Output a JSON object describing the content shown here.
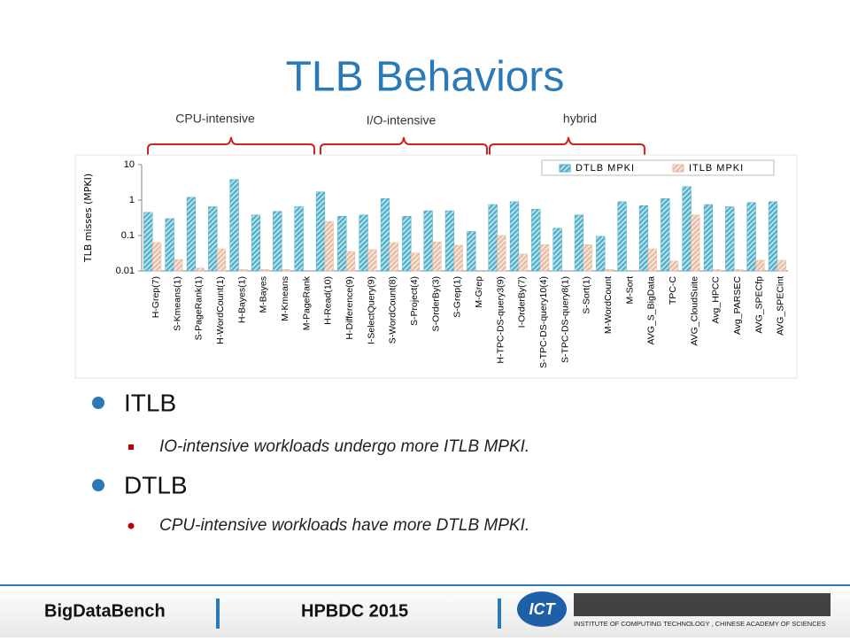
{
  "slide": {
    "title": "TLB Behaviors",
    "bullets": [
      {
        "text": "ITLB",
        "sub": "IO-intensive workloads undergo more ITLB MPKI."
      },
      {
        "text": "DTLB",
        "sub": "CPU-intensive workloads have more DTLB MPKI."
      }
    ],
    "footer": {
      "left": "BigDataBench",
      "center": "HPBDC 2015",
      "logo_mark": "ICT",
      "logo_text": "INSTITUTE OF COMPUTING TECHNOLOGY , CHINESE ACADEMY OF SCIENCES"
    }
  },
  "chart_data": {
    "type": "bar",
    "log_scale": true,
    "y_label": "TLB misses (MPKI)",
    "annotations": [
      "CPU-intensive",
      "I/O-intensive",
      "hybrid"
    ],
    "legend": "top-right",
    "categories": [
      "H-Grep(7)",
      "S-Kmeans(1)",
      "S-PageRank(1)",
      "H-WordCount(1)",
      "H-Bayes(1)",
      "M-Bayes",
      "M-Kmeans",
      "M-PageRank",
      "H-Read(10)",
      "H-Difference(9)",
      "I-SelectQuery(9)",
      "S-WordCount(8)",
      "S-Project(4)",
      "S-OrderBy(3)",
      "S-Grep(1)",
      "M-Grep",
      "H-TPC-DS-query3(9)",
      "I-OrderBy(7)",
      "S-TPC-DS-query10(4)",
      "S-TPC-DS-query8(1)",
      "S-Sort(1)",
      "M-WordCount",
      "M-Sort",
      "AVG_S_BigData",
      "TPC-C",
      "AVG_CloudSuite",
      "Avg_HPCC",
      "Avg_PARSEC",
      "AVG_SPECfp",
      "AVG_SPECint"
    ],
    "series": [
      {
        "name": "DTLB MPKI",
        "color": "#4bacc6",
        "values": [
          0.45,
          0.3,
          1.2,
          0.65,
          3.8,
          0.38,
          0.48,
          0.65,
          1.7,
          0.35,
          0.38,
          1.1,
          0.35,
          0.5,
          0.5,
          0.13,
          0.75,
          0.9,
          0.55,
          0.16,
          0.38,
          0.095,
          0.9,
          0.7,
          1.1,
          2.4,
          0.75,
          0.65,
          0.85,
          0.9
        ]
      },
      {
        "name": "ITLB MPKI",
        "color": "#e6b9a0",
        "values": [
          0.063,
          0.021,
          0.012,
          0.042,
          0.011,
          0.011,
          0.011,
          0.01,
          0.25,
          0.035,
          0.04,
          0.063,
          0.032,
          0.066,
          0.053,
          0.01,
          0.1,
          0.03,
          0.055,
          0.01,
          0.055,
          0.011,
          0.01,
          0.042,
          0.019,
          0.38,
          0.011,
          0.011,
          0.02,
          0.02
        ]
      }
    ],
    "ylim": [
      0.01,
      10
    ],
    "yticks": [
      0.01,
      0.1,
      1,
      10
    ]
  }
}
